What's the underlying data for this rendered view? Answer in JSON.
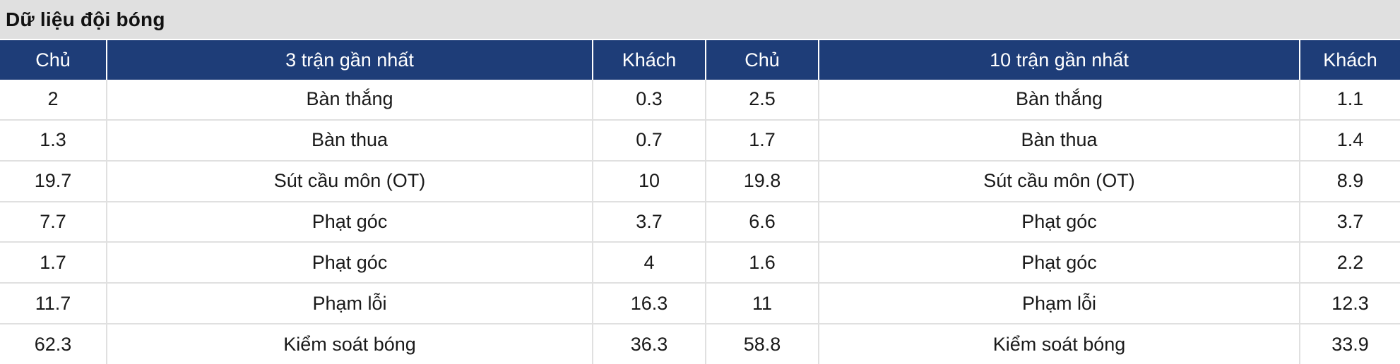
{
  "title": "Dữ liệu đội bóng",
  "colors": {
    "header_bg": "#1e3d78",
    "header_text": "#ffffff",
    "title_bar_bg": "#e0e0e0",
    "grid_line": "#e0e0e0",
    "body_text": "#1a1a1a"
  },
  "header": {
    "columns": [
      "Chủ",
      "3 trận gần nhất",
      "Khách",
      "Chủ",
      "10 trận gần nhất",
      "Khách"
    ]
  },
  "rows": [
    {
      "home3": "2",
      "stat3": "Bàn thắng",
      "away3": "0.3",
      "home10": "2.5",
      "stat10": "Bàn thắng",
      "away10": "1.1"
    },
    {
      "home3": "1.3",
      "stat3": "Bàn thua",
      "away3": "0.7",
      "home10": "1.7",
      "stat10": "Bàn thua",
      "away10": "1.4"
    },
    {
      "home3": "19.7",
      "stat3": "Sút cầu môn (OT)",
      "away3": "10",
      "home10": "19.8",
      "stat10": "Sút cầu môn (OT)",
      "away10": "8.9"
    },
    {
      "home3": "7.7",
      "stat3": "Phạt góc",
      "away3": "3.7",
      "home10": "6.6",
      "stat10": "Phạt góc",
      "away10": "3.7"
    },
    {
      "home3": "1.7",
      "stat3": "Phạt góc",
      "away3": "4",
      "home10": "1.6",
      "stat10": "Phạt góc",
      "away10": "2.2"
    },
    {
      "home3": "11.7",
      "stat3": "Phạm lỗi",
      "away3": "16.3",
      "home10": "11",
      "stat10": "Phạm lỗi",
      "away10": "12.3"
    },
    {
      "home3": "62.3",
      "stat3": "Kiểm soát bóng",
      "away3": "36.3",
      "home10": "58.8",
      "stat10": "Kiểm soát bóng",
      "away10": "33.9"
    }
  ]
}
